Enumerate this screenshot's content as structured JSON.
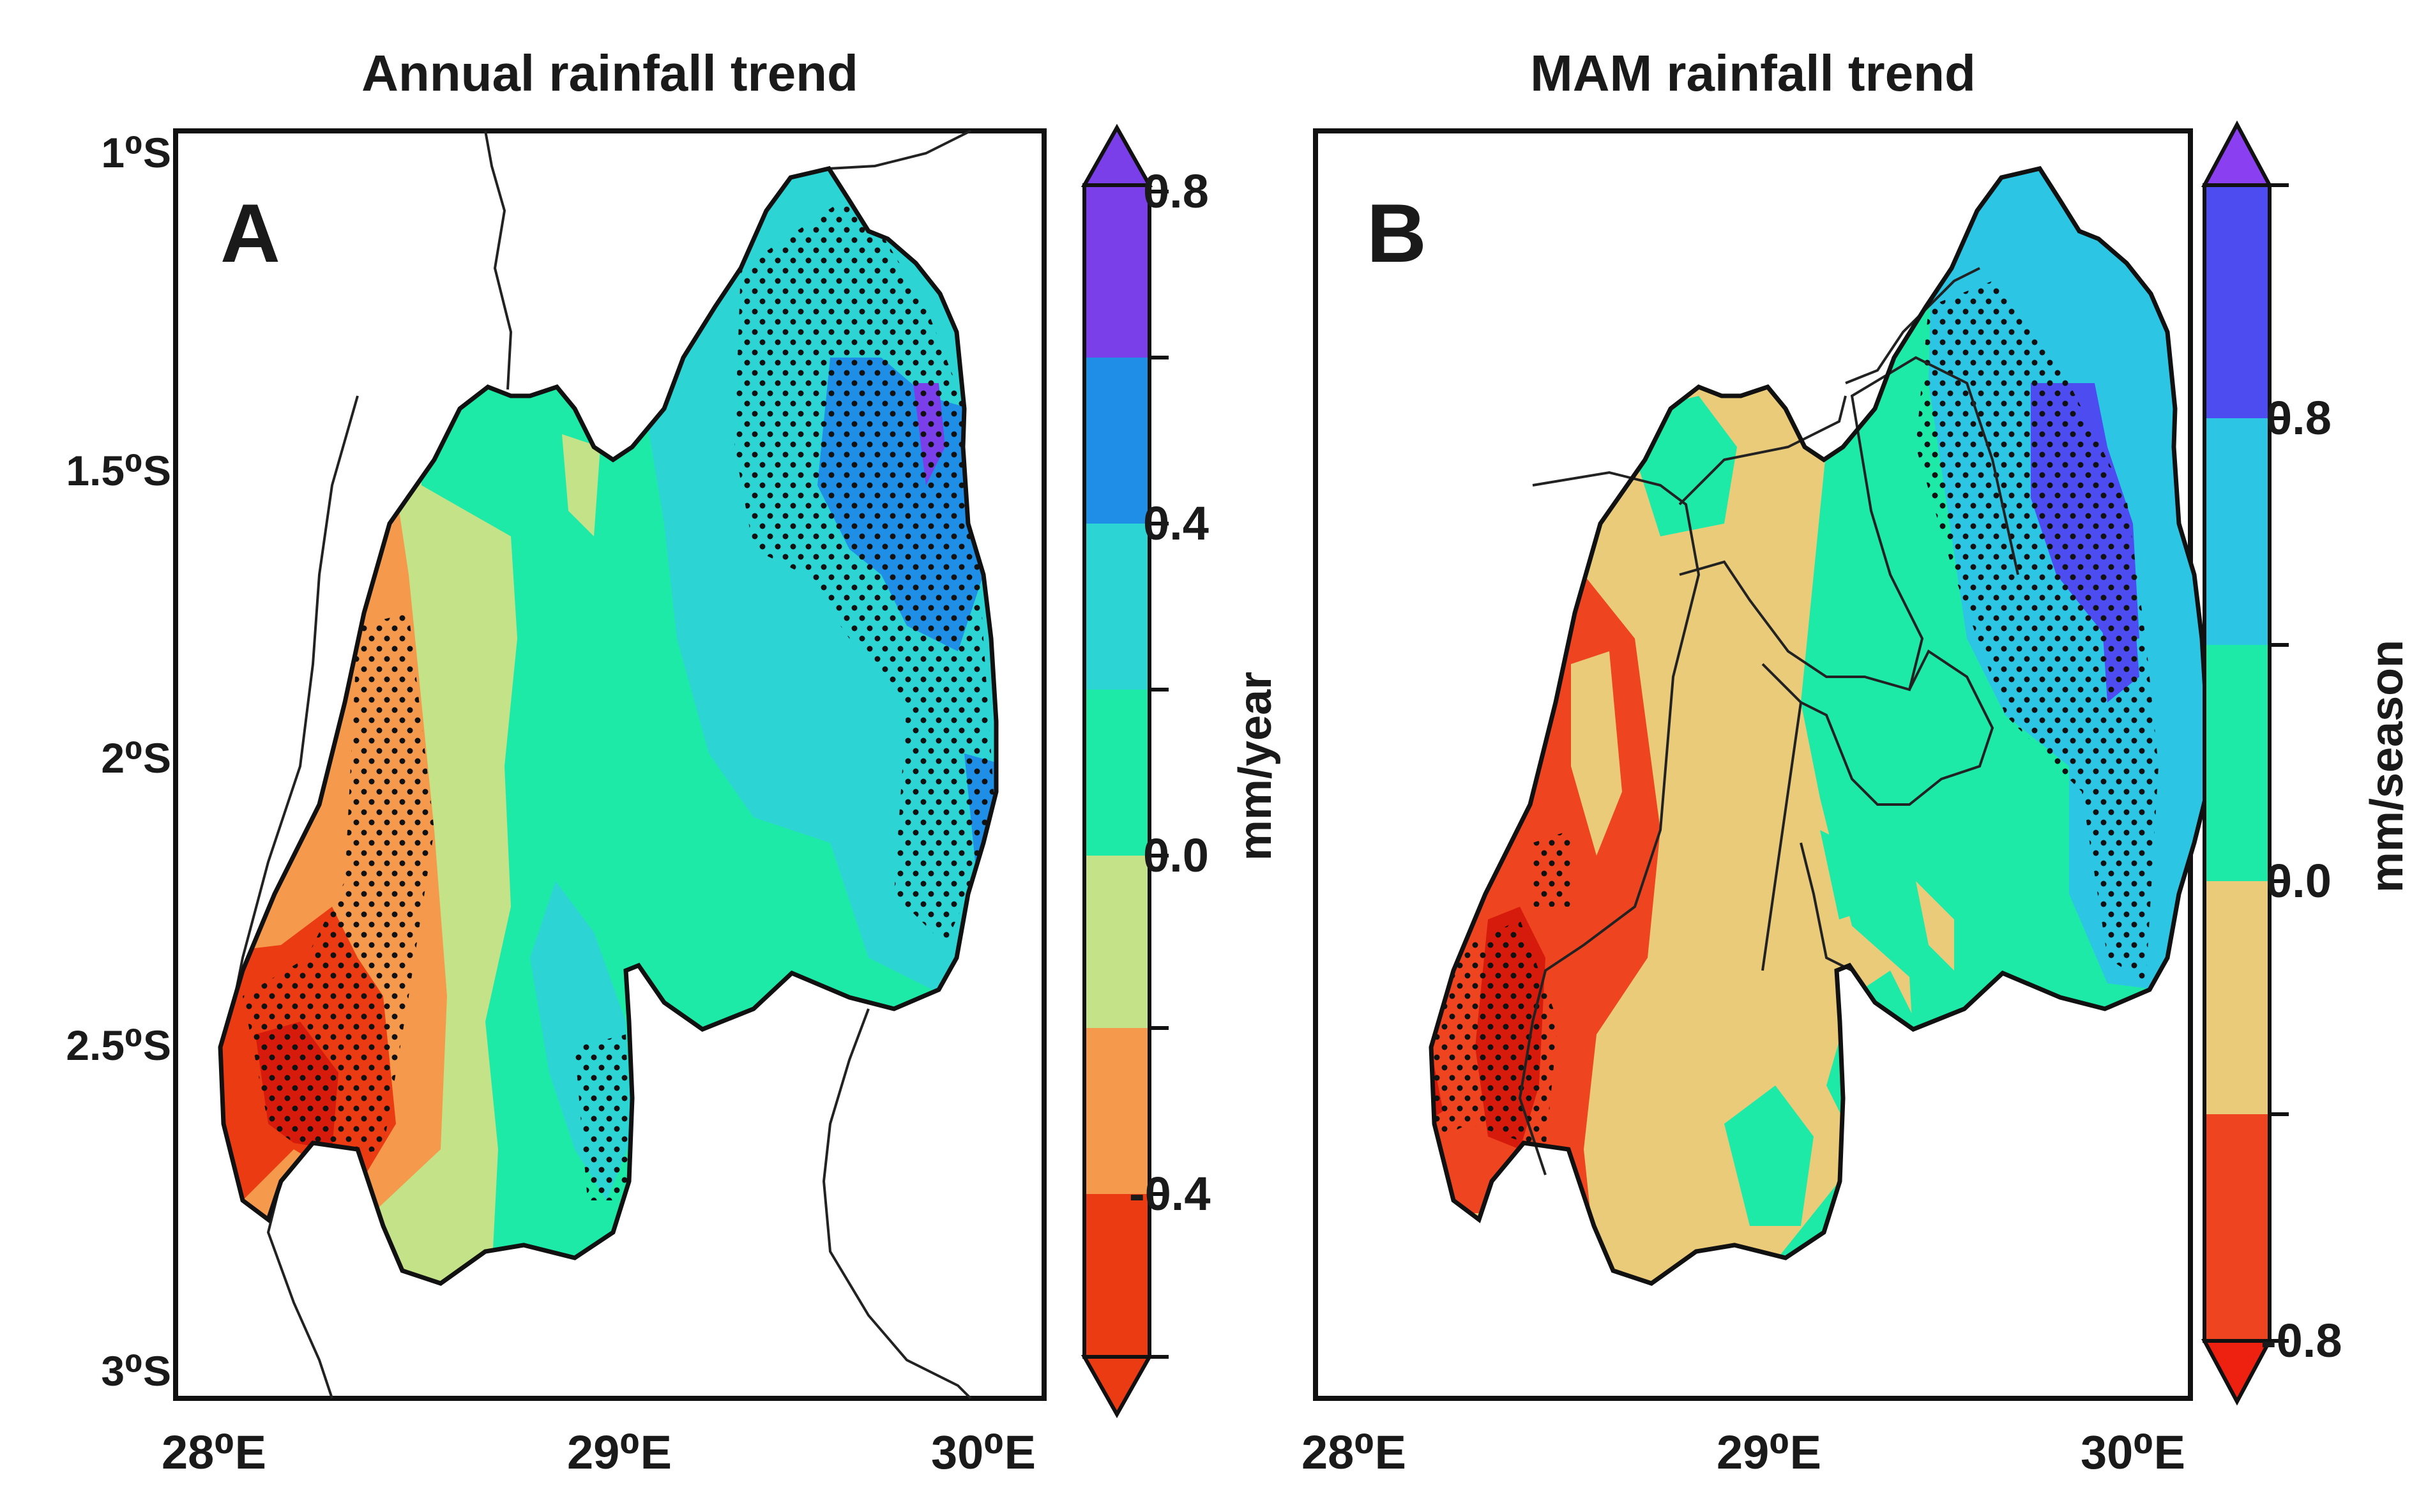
{
  "panels": [
    {
      "id": "A",
      "letter": "A",
      "title": "Annual rainfall trend",
      "colorbar": {
        "unit": "mm/year",
        "levels": [
          -0.8,
          -0.6,
          -0.4,
          -0.2,
          0.0,
          0.2,
          0.4,
          0.6,
          0.8
        ],
        "labels": [
          {
            "text": "0.8",
            "value": 0.8
          },
          {
            "text": "0.4",
            "value": 0.4
          },
          {
            "text": "0.0",
            "value": 0.0
          },
          {
            "text": "-0.4",
            "value": -0.4
          }
        ],
        "colors": [
          "#ea3b12",
          "#f59a4c",
          "#c4e287",
          "#1eeaa8",
          "#2cd4d4",
          "#1f8ee6",
          "#7a3fe8"
        ]
      },
      "y_ticks": [
        "1⁰S",
        "1.5⁰S",
        "2⁰S",
        "2.5⁰S",
        "3⁰S"
      ],
      "x_ticks": [
        "28⁰E",
        "29⁰E",
        "30⁰E"
      ]
    },
    {
      "id": "B",
      "letter": "B",
      "title": "MAM rainfall trend",
      "colorbar": {
        "unit": "mm/season",
        "levels": [
          -1.2,
          -0.8,
          -0.4,
          0.0,
          0.4,
          0.8,
          1.2
        ],
        "labels": [
          {
            "text": "0.8",
            "value": 0.8
          },
          {
            "text": "0.0",
            "value": 0.0
          },
          {
            "text": "-0.8",
            "value": -0.8
          }
        ],
        "colors": [
          "#ee4520",
          "#e9cb7a",
          "#1eeaa8",
          "#2cc6e4",
          "#4c4cf0",
          "#8a3ff0"
        ]
      },
      "y_ticks": [],
      "x_ticks": [
        "28⁰E",
        "29⁰E",
        "30⁰E"
      ]
    }
  ],
  "map_colors": {
    "deep_red": "#d61b0c",
    "red": "#ea3b12",
    "orange": "#f59a4c",
    "light_green": "#c4e287",
    "green": "#1eeaa8",
    "cyan": "#2cd4d4",
    "blue": "#1f8ee6",
    "purple": "#7a3fe8",
    "tan": "#e9cb7a",
    "b_red": "#ee4520",
    "b_cyan": "#2cc6e4",
    "b_blue": "#4c4cf0"
  }
}
